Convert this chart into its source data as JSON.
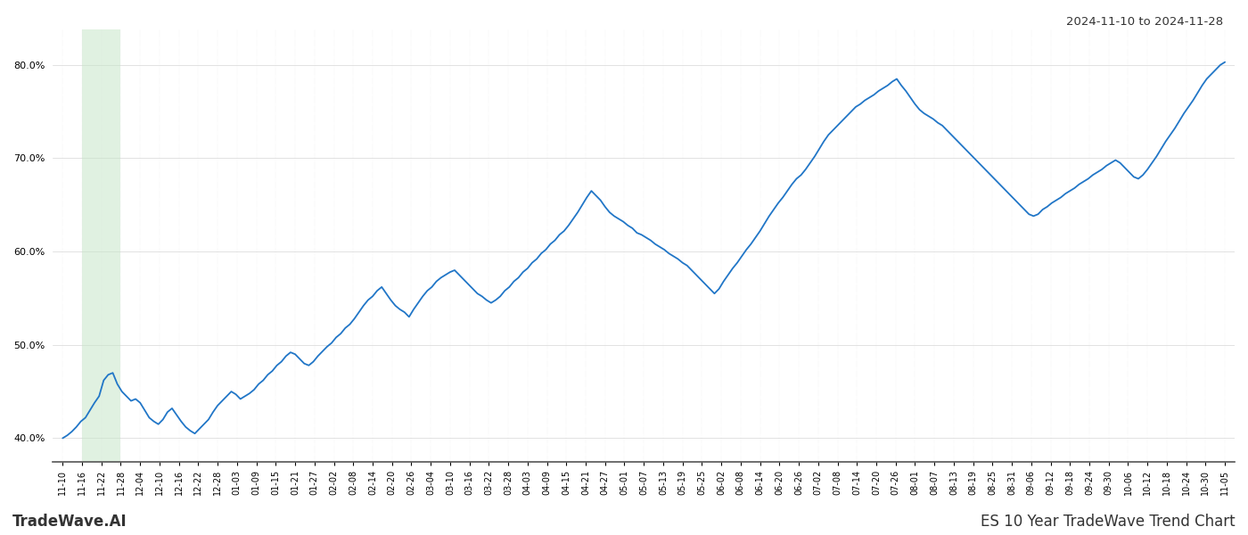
{
  "title_top_right": "2024-11-10 to 2024-11-28",
  "title_bottom_left": "TradeWave.AI",
  "title_bottom_right": "ES 10 Year TradeWave Trend Chart",
  "line_color": "#2176c7",
  "line_width": 1.3,
  "shade_color": "#c8e6c9",
  "shade_alpha": 0.55,
  "ylim": [
    0.375,
    0.838
  ],
  "yticks": [
    0.4,
    0.5,
    0.6,
    0.7,
    0.8
  ],
  "background_color": "#ffffff",
  "grid_color": "#cccccc",
  "x_labels": [
    "11-10",
    "11-16",
    "11-22",
    "11-28",
    "12-04",
    "12-10",
    "12-16",
    "12-22",
    "12-28",
    "01-03",
    "01-09",
    "01-15",
    "01-21",
    "01-27",
    "02-02",
    "02-08",
    "02-14",
    "02-20",
    "02-26",
    "03-04",
    "03-10",
    "03-16",
    "03-22",
    "03-28",
    "04-03",
    "04-09",
    "04-15",
    "04-21",
    "04-27",
    "05-01",
    "05-07",
    "05-13",
    "05-19",
    "05-25",
    "06-02",
    "06-08",
    "06-14",
    "06-20",
    "06-26",
    "07-02",
    "07-08",
    "07-14",
    "07-20",
    "07-26",
    "08-01",
    "08-07",
    "08-13",
    "08-19",
    "08-25",
    "08-31",
    "09-06",
    "09-12",
    "09-18",
    "09-24",
    "09-30",
    "10-06",
    "10-12",
    "10-18",
    "10-24",
    "10-30",
    "11-05"
  ],
  "shade_x_start_label": "11-16",
  "shade_x_end_label": "11-28",
  "values": [
    0.4,
    0.403,
    0.407,
    0.412,
    0.418,
    0.422,
    0.43,
    0.438,
    0.445,
    0.462,
    0.468,
    0.47,
    0.458,
    0.45,
    0.445,
    0.44,
    0.442,
    0.438,
    0.43,
    0.422,
    0.418,
    0.415,
    0.42,
    0.428,
    0.432,
    0.425,
    0.418,
    0.412,
    0.408,
    0.405,
    0.41,
    0.415,
    0.42,
    0.428,
    0.435,
    0.44,
    0.445,
    0.45,
    0.447,
    0.442,
    0.445,
    0.448,
    0.452,
    0.458,
    0.462,
    0.468,
    0.472,
    0.478,
    0.482,
    0.488,
    0.492,
    0.49,
    0.485,
    0.48,
    0.478,
    0.482,
    0.488,
    0.493,
    0.498,
    0.502,
    0.508,
    0.512,
    0.518,
    0.522,
    0.528,
    0.535,
    0.542,
    0.548,
    0.552,
    0.558,
    0.562,
    0.555,
    0.548,
    0.542,
    0.538,
    0.535,
    0.53,
    0.538,
    0.545,
    0.552,
    0.558,
    0.562,
    0.568,
    0.572,
    0.575,
    0.578,
    0.58,
    0.575,
    0.57,
    0.565,
    0.56,
    0.555,
    0.552,
    0.548,
    0.545,
    0.548,
    0.552,
    0.558,
    0.562,
    0.568,
    0.572,
    0.578,
    0.582,
    0.588,
    0.592,
    0.598,
    0.602,
    0.608,
    0.612,
    0.618,
    0.622,
    0.628,
    0.635,
    0.642,
    0.65,
    0.658,
    0.665,
    0.66,
    0.655,
    0.648,
    0.642,
    0.638,
    0.635,
    0.632,
    0.628,
    0.625,
    0.62,
    0.618,
    0.615,
    0.612,
    0.608,
    0.605,
    0.602,
    0.598,
    0.595,
    0.592,
    0.588,
    0.585,
    0.58,
    0.575,
    0.57,
    0.565,
    0.56,
    0.555,
    0.56,
    0.568,
    0.575,
    0.582,
    0.588,
    0.595,
    0.602,
    0.608,
    0.615,
    0.622,
    0.63,
    0.638,
    0.645,
    0.652,
    0.658,
    0.665,
    0.672,
    0.678,
    0.682,
    0.688,
    0.695,
    0.702,
    0.71,
    0.718,
    0.725,
    0.73,
    0.735,
    0.74,
    0.745,
    0.75,
    0.755,
    0.758,
    0.762,
    0.765,
    0.768,
    0.772,
    0.775,
    0.778,
    0.782,
    0.785,
    0.778,
    0.772,
    0.765,
    0.758,
    0.752,
    0.748,
    0.745,
    0.742,
    0.738,
    0.735,
    0.73,
    0.725,
    0.72,
    0.715,
    0.71,
    0.705,
    0.7,
    0.695,
    0.69,
    0.685,
    0.68,
    0.675,
    0.67,
    0.665,
    0.66,
    0.655,
    0.65,
    0.645,
    0.64,
    0.638,
    0.64,
    0.645,
    0.648,
    0.652,
    0.655,
    0.658,
    0.662,
    0.665,
    0.668,
    0.672,
    0.675,
    0.678,
    0.682,
    0.685,
    0.688,
    0.692,
    0.695,
    0.698,
    0.695,
    0.69,
    0.685,
    0.68,
    0.678,
    0.682,
    0.688,
    0.695,
    0.702,
    0.71,
    0.718,
    0.725,
    0.732,
    0.74,
    0.748,
    0.755,
    0.762,
    0.77,
    0.778,
    0.785,
    0.79,
    0.795,
    0.8,
    0.803
  ]
}
